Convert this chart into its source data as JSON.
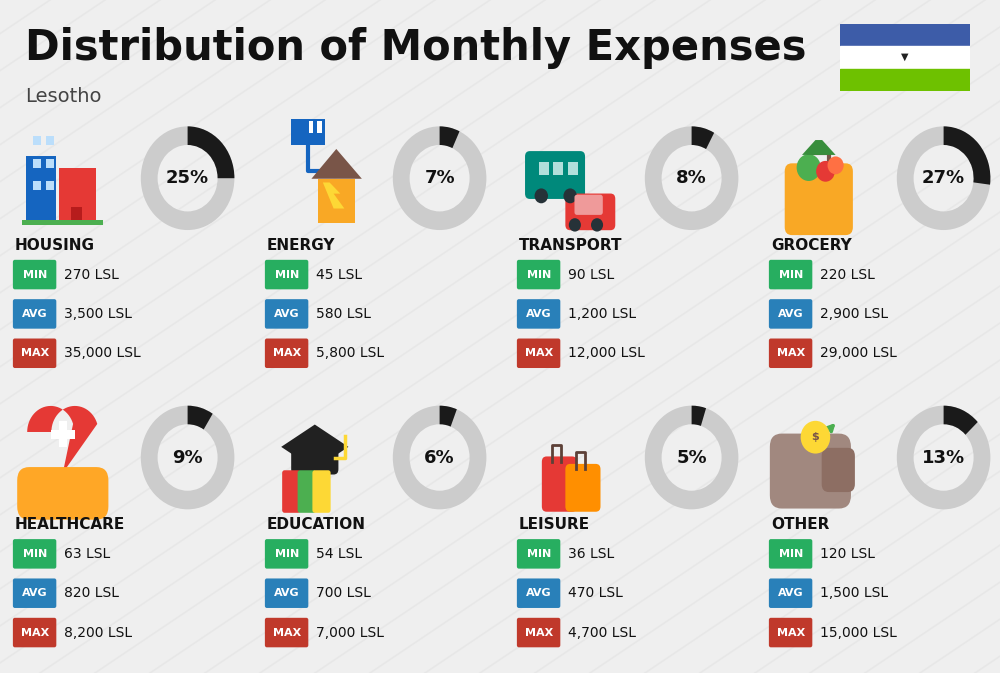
{
  "title": "Distribution of Monthly Expenses",
  "subtitle": "Lesotho",
  "background_color": "#efefef",
  "categories": [
    {
      "name": "HOUSING",
      "pct": 25,
      "min": "270 LSL",
      "avg": "3,500 LSL",
      "max": "35,000 LSL",
      "icon_type": "housing"
    },
    {
      "name": "ENERGY",
      "pct": 7,
      "min": "45 LSL",
      "avg": "580 LSL",
      "max": "5,800 LSL",
      "icon_type": "energy"
    },
    {
      "name": "TRANSPORT",
      "pct": 8,
      "min": "90 LSL",
      "avg": "1,200 LSL",
      "max": "12,000 LSL",
      "icon_type": "transport"
    },
    {
      "name": "GROCERY",
      "pct": 27,
      "min": "220 LSL",
      "avg": "2,900 LSL",
      "max": "29,000 LSL",
      "icon_type": "grocery"
    },
    {
      "name": "HEALTHCARE",
      "pct": 9,
      "min": "63 LSL",
      "avg": "820 LSL",
      "max": "8,200 LSL",
      "icon_type": "healthcare"
    },
    {
      "name": "EDUCATION",
      "pct": 6,
      "min": "54 LSL",
      "avg": "700 LSL",
      "max": "7,000 LSL",
      "icon_type": "education"
    },
    {
      "name": "LEISURE",
      "pct": 5,
      "min": "36 LSL",
      "avg": "470 LSL",
      "max": "4,700 LSL",
      "icon_type": "leisure"
    },
    {
      "name": "OTHER",
      "pct": 13,
      "min": "120 LSL",
      "avg": "1,500 LSL",
      "max": "15,000 LSL",
      "icon_type": "other"
    }
  ],
  "min_color": "#27ae60",
  "avg_color": "#2980b9",
  "max_color": "#c0392b",
  "donut_active_color": "#1a1a1a",
  "donut_inactive_color": "#cccccc",
  "flag_blue": "#3d5ca8",
  "flag_white": "#ffffff",
  "flag_green": "#6ec100",
  "category_color": "#111111",
  "value_color": "#111111",
  "title_fontsize": 30,
  "subtitle_fontsize": 14,
  "cat_fontsize": 11,
  "val_fontsize": 10,
  "badge_fontsize": 8,
  "pct_fontsize": 13
}
